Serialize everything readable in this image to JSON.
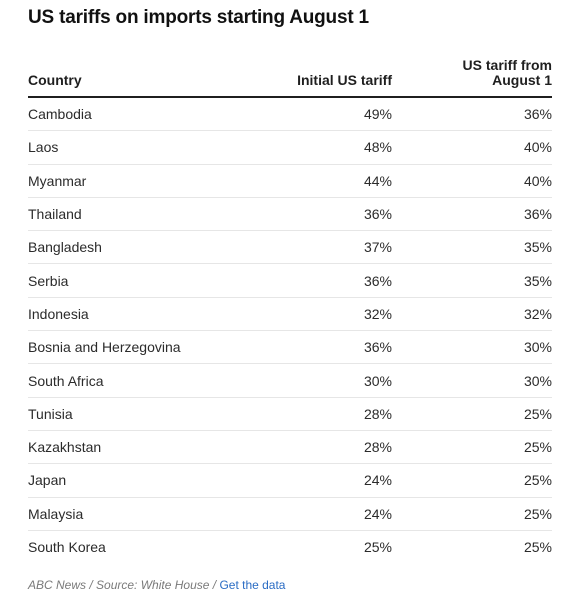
{
  "title": "US tariffs on imports starting August 1",
  "footer": {
    "credit": "ABC News",
    "sep1": " / ",
    "source": "Source: White House",
    "sep2": " / ",
    "link": "Get the data"
  },
  "colors": {
    "text": "#1f1f1f",
    "rule": "#1f1f1f",
    "row_border": "#e6e6e6",
    "footer_text": "#7a7a7a",
    "link": "#2a6cc4"
  },
  "chart_data": {
    "type": "table",
    "title": "US tariffs on imports starting August 1",
    "columns": [
      "Country",
      "Initial US tariff",
      "US tariff from August 1"
    ],
    "rows": [
      [
        "Cambodia",
        "49%",
        "36%"
      ],
      [
        "Laos",
        "48%",
        "40%"
      ],
      [
        "Myanmar",
        "44%",
        "40%"
      ],
      [
        "Thailand",
        "36%",
        "36%"
      ],
      [
        "Bangladesh",
        "37%",
        "35%"
      ],
      [
        "Serbia",
        "36%",
        "35%"
      ],
      [
        "Indonesia",
        "32%",
        "32%"
      ],
      [
        "Bosnia and Herzegovina",
        "36%",
        "30%"
      ],
      [
        "South Africa",
        "30%",
        "30%"
      ],
      [
        "Tunisia",
        "28%",
        "25%"
      ],
      [
        "Kazakhstan",
        "28%",
        "25%"
      ],
      [
        "Japan",
        "24%",
        "25%"
      ],
      [
        "Malaysia",
        "24%",
        "25%"
      ],
      [
        "South Korea",
        "25%",
        "25%"
      ]
    ]
  }
}
